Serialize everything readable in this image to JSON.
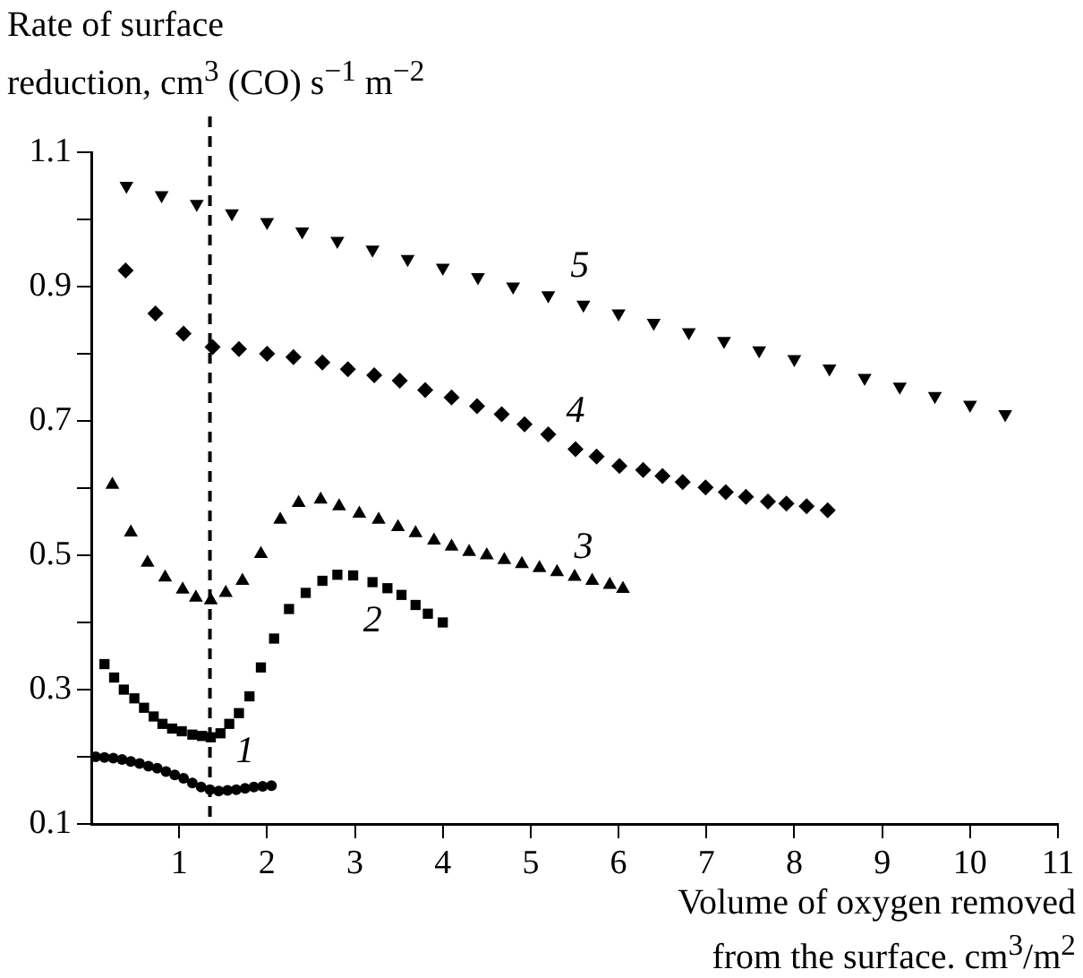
{
  "chart_data": {
    "type": "scatter",
    "ylabel": "Rate of surface\nreduction, cm$^{3}$ (CO) s$^{−1}$ m$^{−2}$",
    "xlabel": "Volume of oxygen removed\nfrom the surface. cm$^{3}$/m$^{2}$",
    "xlim": [
      0,
      11
    ],
    "xticks": [
      1,
      2,
      3,
      4,
      5,
      6,
      7,
      8,
      9,
      10,
      11
    ],
    "ylim": [
      0.1,
      1.1
    ],
    "yticks": [
      0.1,
      {
        "value": 0.2,
        "label": null
      },
      0.3,
      {
        "value": 0.4,
        "label": null
      },
      0.5,
      {
        "value": 0.6,
        "label": null
      },
      0.7,
      {
        "value": 0.8,
        "label": null
      },
      0.9,
      {
        "value": 1.0,
        "label": null
      },
      1.1
    ],
    "grid": false,
    "legend": false,
    "ref_lines": [
      {
        "axis": "x",
        "value": 1.35,
        "color": "#000000",
        "line_style": "dashed"
      }
    ],
    "series": [
      {
        "name": "1",
        "color": "#000000",
        "marker": "circle",
        "x": [
          0.05,
          0.15,
          0.25,
          0.35,
          0.45,
          0.55,
          0.65,
          0.75,
          0.85,
          0.95,
          1.05,
          1.15,
          1.25,
          1.35,
          1.45,
          1.55,
          1.65,
          1.75,
          1.85,
          1.95,
          2.05
        ],
        "values": [
          0.2,
          0.199,
          0.198,
          0.196,
          0.193,
          0.19,
          0.186,
          0.183,
          0.178,
          0.173,
          0.168,
          0.161,
          0.155,
          0.151,
          0.149,
          0.15,
          0.151,
          0.153,
          0.155,
          0.156,
          0.157
        ]
      },
      {
        "name": "2",
        "color": "#000000",
        "marker": "square",
        "x": [
          0.15,
          0.26,
          0.37,
          0.49,
          0.6,
          0.71,
          0.81,
          0.92,
          1.03,
          1.15,
          1.26,
          1.36,
          1.47,
          1.57,
          1.68,
          1.8,
          1.93,
          2.08,
          2.25,
          2.44,
          2.63,
          2.8,
          2.98,
          3.2,
          3.37,
          3.53,
          3.69,
          3.83,
          4.0
        ],
        "values": [
          0.338,
          0.318,
          0.3,
          0.287,
          0.273,
          0.26,
          0.249,
          0.242,
          0.238,
          0.233,
          0.231,
          0.229,
          0.235,
          0.249,
          0.265,
          0.29,
          0.333,
          0.376,
          0.42,
          0.444,
          0.462,
          0.471,
          0.47,
          0.46,
          0.451,
          0.441,
          0.426,
          0.413,
          0.4
        ]
      },
      {
        "name": "3",
        "color": "#000000",
        "marker": "triangle",
        "x": [
          0.24,
          0.45,
          0.64,
          0.84,
          1.04,
          1.19,
          1.36,
          1.53,
          1.72,
          1.93,
          2.15,
          2.36,
          2.61,
          2.82,
          3.05,
          3.27,
          3.49,
          3.69,
          3.9,
          4.1,
          4.3,
          4.5,
          4.7,
          4.9,
          5.1,
          5.3,
          5.5,
          5.7,
          5.9,
          6.05
        ],
        "values": [
          0.605,
          0.534,
          0.489,
          0.467,
          0.449,
          0.437,
          0.433,
          0.444,
          0.462,
          0.502,
          0.553,
          0.578,
          0.583,
          0.573,
          0.562,
          0.553,
          0.542,
          0.533,
          0.522,
          0.513,
          0.505,
          0.5,
          0.493,
          0.487,
          0.481,
          0.475,
          0.468,
          0.462,
          0.456,
          0.45
        ]
      },
      {
        "name": "4",
        "color": "#000000",
        "marker": "diamond",
        "x": [
          0.39,
          0.73,
          1.05,
          1.38,
          1.68,
          2.0,
          2.3,
          2.63,
          2.92,
          3.22,
          3.51,
          3.8,
          4.1,
          4.39,
          4.67,
          4.93,
          5.2,
          5.51,
          5.75,
          6.01,
          6.28,
          6.5,
          6.73,
          6.99,
          7.22,
          7.45,
          7.7,
          7.91,
          8.14,
          8.38
        ],
        "values": [
          0.924,
          0.86,
          0.83,
          0.81,
          0.807,
          0.8,
          0.795,
          0.787,
          0.777,
          0.768,
          0.76,
          0.746,
          0.735,
          0.722,
          0.71,
          0.695,
          0.68,
          0.658,
          0.647,
          0.633,
          0.627,
          0.618,
          0.609,
          0.601,
          0.594,
          0.587,
          0.58,
          0.577,
          0.573,
          0.567
        ]
      },
      {
        "name": "5",
        "color": "#000000",
        "marker": "triangle-down",
        "x": [
          0.4,
          0.8,
          1.2,
          1.6,
          2.0,
          2.4,
          2.8,
          3.2,
          3.6,
          4.0,
          4.4,
          4.8,
          5.2,
          5.6,
          6.0,
          6.4,
          6.8,
          7.2,
          7.6,
          8.0,
          8.4,
          8.8,
          9.2,
          9.6,
          10.0,
          10.4
        ],
        "values": [
          1.05,
          1.036,
          1.023,
          1.009,
          0.996,
          0.982,
          0.968,
          0.955,
          0.941,
          0.928,
          0.914,
          0.9,
          0.887,
          0.873,
          0.86,
          0.846,
          0.832,
          0.819,
          0.805,
          0.792,
          0.778,
          0.764,
          0.751,
          0.737,
          0.724,
          0.71
        ]
      }
    ]
  }
}
